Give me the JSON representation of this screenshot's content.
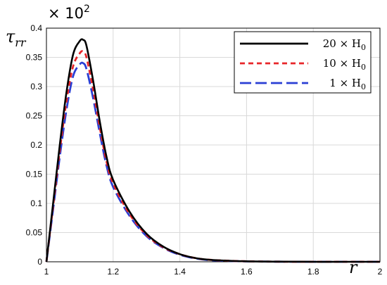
{
  "chart_data": {
    "type": "line",
    "xlabel_main": "r",
    "ylabel_main": "τ",
    "ylabel_sub": "rr",
    "y_multiplier_base": "× 10",
    "y_multiplier_exp": "2",
    "xlim": [
      1,
      2
    ],
    "ylim": [
      0,
      0.4
    ],
    "grid": true,
    "legend_position": "top-right",
    "x_ticks": [
      1,
      1.2,
      1.4,
      1.6,
      1.8,
      2
    ],
    "x_tick_labels": [
      "1",
      "1.2",
      "1.4",
      "1.6",
      "1.8",
      "2"
    ],
    "y_ticks": [
      0,
      0.05,
      0.1,
      0.15,
      0.2,
      0.25,
      0.3,
      0.35,
      0.4
    ],
    "y_tick_labels": [
      "0",
      "0.05",
      "0.1",
      "0.15",
      "0.2",
      "0.25",
      "0.3",
      "0.35",
      "0.4"
    ],
    "x": [
      1.0,
      1.02,
      1.04,
      1.06,
      1.08,
      1.1,
      1.11,
      1.12,
      1.14,
      1.16,
      1.18,
      1.2,
      1.25,
      1.3,
      1.35,
      1.4,
      1.45,
      1.5,
      1.6,
      1.7,
      1.8,
      1.9,
      2.0
    ],
    "series": [
      {
        "name_main": "20 × H",
        "name_sub": "0",
        "color": "#000000",
        "dash": "",
        "values": [
          0.0,
          0.1,
          0.2,
          0.29,
          0.355,
          0.378,
          0.38,
          0.37,
          0.31,
          0.24,
          0.18,
          0.14,
          0.085,
          0.048,
          0.026,
          0.013,
          0.006,
          0.003,
          0.0008,
          0.0002,
          0.0,
          0.0,
          0.0
        ]
      },
      {
        "name_main": "10 × H",
        "name_sub": "0",
        "color": "#e8262a",
        "dash": "7,5",
        "values": [
          0.0,
          0.095,
          0.19,
          0.275,
          0.335,
          0.357,
          0.36,
          0.35,
          0.295,
          0.23,
          0.172,
          0.134,
          0.081,
          0.046,
          0.025,
          0.013,
          0.006,
          0.003,
          0.0008,
          0.0002,
          0.0,
          0.0,
          0.0
        ]
      },
      {
        "name_main": "1 × H",
        "name_sub": "0",
        "color": "#2a3fd4",
        "dash": "16,6",
        "values": [
          0.0,
          0.09,
          0.18,
          0.26,
          0.318,
          0.338,
          0.34,
          0.33,
          0.28,
          0.22,
          0.165,
          0.128,
          0.078,
          0.044,
          0.024,
          0.012,
          0.0055,
          0.0025,
          0.0007,
          0.0002,
          0.0,
          0.0,
          0.0
        ]
      }
    ]
  }
}
